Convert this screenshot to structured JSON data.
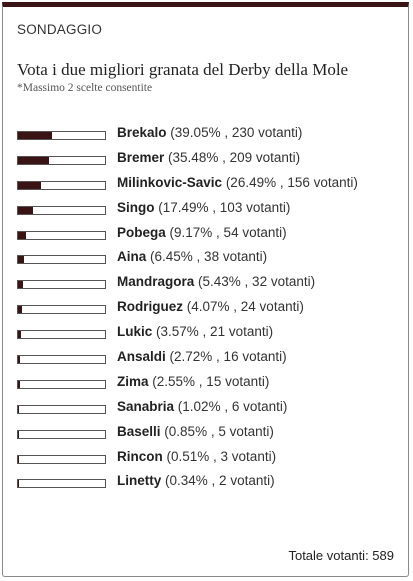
{
  "poll": {
    "kicker": "SONDAGGIO",
    "question": "Vota i due migliori granata del Derby della Mole",
    "note": "*Massimo 2 scelte consentite",
    "total_label": "Totale votanti: 589",
    "accent_color": "#3a1414",
    "options": [
      {
        "name": "Brekalo",
        "percent": 39.05,
        "stats": "(39.05% , 230 votanti)"
      },
      {
        "name": "Bremer",
        "percent": 35.48,
        "stats": "(35.48% , 209 votanti)"
      },
      {
        "name": "Milinkovic-Savic",
        "percent": 26.49,
        "stats": "(26.49% , 156 votanti)"
      },
      {
        "name": "Singo",
        "percent": 17.49,
        "stats": "(17.49% , 103 votanti)"
      },
      {
        "name": "Pobega",
        "percent": 9.17,
        "stats": "(9.17% , 54 votanti)"
      },
      {
        "name": "Aina",
        "percent": 6.45,
        "stats": "(6.45% , 38 votanti)"
      },
      {
        "name": "Mandragora",
        "percent": 5.43,
        "stats": "(5.43% , 32 votanti)"
      },
      {
        "name": "Rodriguez",
        "percent": 4.07,
        "stats": "(4.07% , 24 votanti)"
      },
      {
        "name": "Lukic",
        "percent": 3.57,
        "stats": "(3.57% , 21 votanti)"
      },
      {
        "name": "Ansaldi",
        "percent": 2.72,
        "stats": "(2.72% , 16 votanti)"
      },
      {
        "name": "Zima",
        "percent": 2.55,
        "stats": "(2.55% , 15 votanti)"
      },
      {
        "name": "Sanabria",
        "percent": 1.02,
        "stats": "(1.02% , 6 votanti)"
      },
      {
        "name": "Baselli",
        "percent": 0.85,
        "stats": "(0.85% , 5 votanti)"
      },
      {
        "name": "Rincon",
        "percent": 0.51,
        "stats": "(0.51% , 3 votanti)"
      },
      {
        "name": "Linetty",
        "percent": 0.34,
        "stats": "(0.34% , 2 votanti)"
      }
    ]
  }
}
